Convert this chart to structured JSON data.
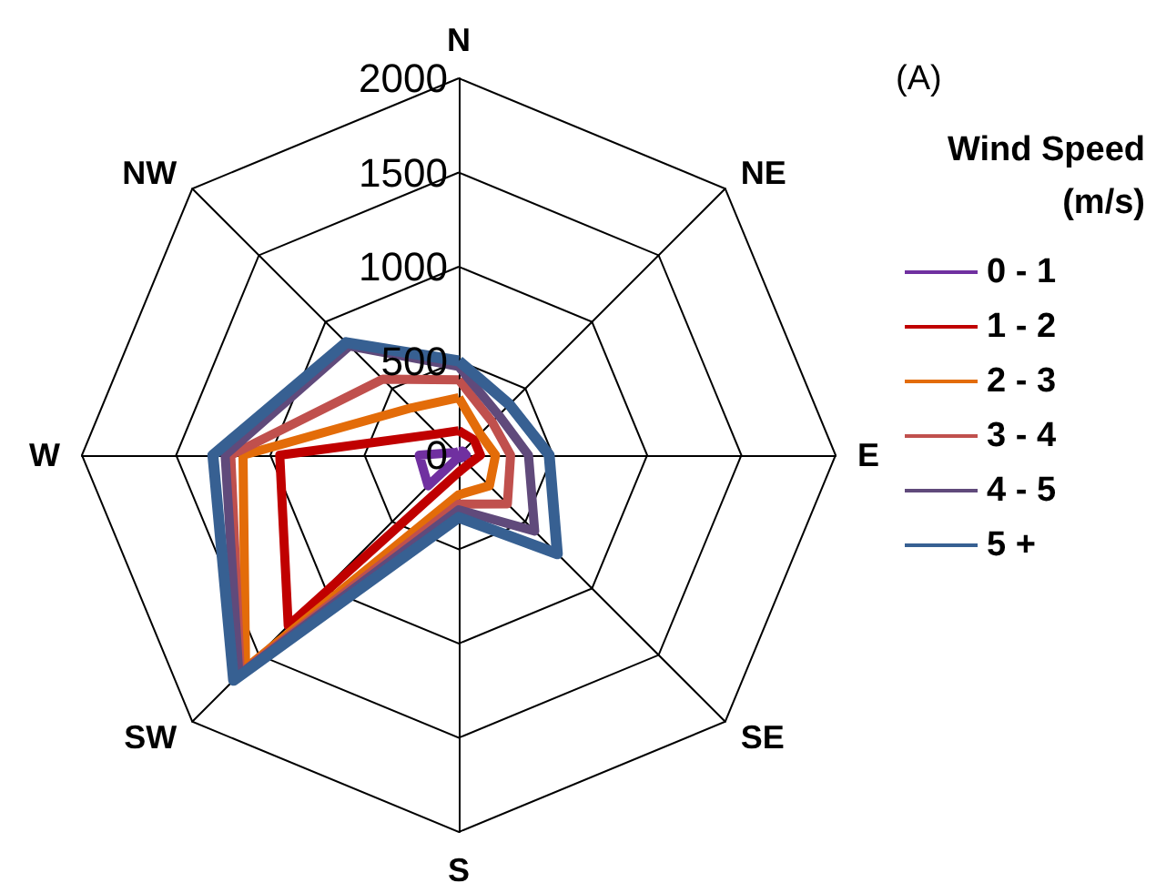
{
  "chart_data": {
    "type": "radar",
    "categories": [
      "N",
      "NE",
      "E",
      "SE",
      "S",
      "SW",
      "W",
      "NW"
    ],
    "series": [
      {
        "name": "0 - 1",
        "color": "#7030a0",
        "values": [
          20,
          30,
          40,
          20,
          10,
          230,
          210,
          20
        ]
      },
      {
        "name": "1 - 2",
        "color": "#c00000",
        "values": [
          130,
          115,
          115,
          70,
          90,
          1280,
          950,
          160
        ]
      },
      {
        "name": "2 - 3",
        "color": "#e36c09",
        "values": [
          305,
          160,
          195,
          230,
          210,
          1600,
          1145,
          355
        ]
      },
      {
        "name": "3 - 4",
        "color": "#c0504d",
        "values": [
          400,
          250,
          275,
          365,
          260,
          1640,
          1210,
          570
        ]
      },
      {
        "name": "4 - 5",
        "color": "#604a7b",
        "values": [
          470,
          300,
          370,
          570,
          290,
          1650,
          1240,
          820
        ]
      },
      {
        "name": "5 +",
        "color": "#376092",
        "values": [
          500,
          380,
          480,
          740,
          330,
          1690,
          1305,
          845
        ]
      }
    ],
    "ylim": [
      0,
      2000
    ],
    "yticks": [
      0,
      500,
      1000,
      1500,
      2000
    ],
    "grid": true,
    "marker": "none",
    "line_style": "solid",
    "legend": "right",
    "legend_title": "Wind Speed\n(m/s)",
    "annotations": [
      "(A)"
    ]
  }
}
